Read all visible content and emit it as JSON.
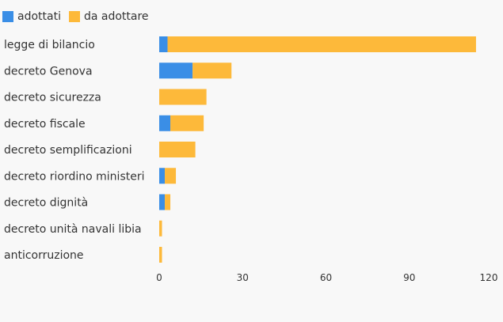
{
  "colors": {
    "adottati": "#3a8ee6",
    "da_adottare": "#fdb93a",
    "background": "#f8f8f8",
    "text": "#333333"
  },
  "chart_data": {
    "type": "bar",
    "orientation": "horizontal",
    "stacked": true,
    "categories": [
      "legge di bilancio",
      "decreto Genova",
      "decreto sicurezza",
      "decreto fiscale",
      "decreto semplificazioni",
      "decreto riordino ministeri",
      "decreto dignità",
      "decreto unità navali libia",
      "anticorruzione"
    ],
    "series": [
      {
        "name": "adottati",
        "values": [
          3,
          12,
          0,
          4,
          0,
          2,
          2,
          0,
          0
        ]
      },
      {
        "name": "da adottare",
        "values": [
          111,
          14,
          17,
          12,
          13,
          4,
          2,
          1,
          1
        ]
      }
    ],
    "xlim": [
      0,
      120
    ],
    "xticks": [
      0,
      30,
      60,
      90,
      120
    ],
    "legend_position": "top-left",
    "grid": false
  }
}
